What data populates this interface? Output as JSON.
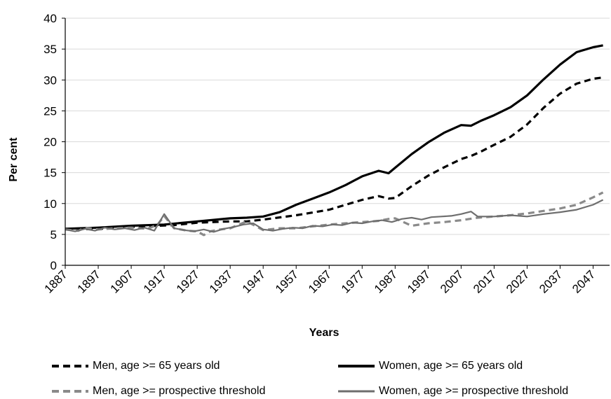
{
  "chart_data": {
    "type": "line",
    "title": "",
    "xlabel": "Years",
    "ylabel": "Per cent",
    "xlim": [
      1887,
      2052
    ],
    "ylim": [
      0,
      40
    ],
    "yticks": [
      "0",
      "5",
      "10",
      "15",
      "20",
      "25",
      "30",
      "35",
      "40"
    ],
    "xticks": [
      "1887",
      "1897",
      "1907",
      "1917",
      "1927",
      "1937",
      "1947",
      "1957",
      "1967",
      "1977",
      "1987",
      "1997",
      "2007",
      "2017",
      "2027",
      "2037",
      "2047"
    ],
    "grid": true,
    "legend_position": "bottom",
    "series": [
      {
        "name": "Men, age >= 65 years old",
        "color": "#000000",
        "dash": true,
        "x": [
          1887,
          1897,
          1907,
          1915,
          1920,
          1927,
          1937,
          1942,
          1947,
          1957,
          1967,
          1972,
          1977,
          1982,
          1985,
          1987,
          1992,
          1997,
          2002,
          2007,
          2010,
          2013,
          2017,
          2022,
          2027,
          2032,
          2037,
          2042,
          2047,
          2050
        ],
        "y": [
          5.8,
          5.9,
          6.2,
          6.4,
          6.5,
          6.9,
          7.1,
          7.1,
          7.4,
          8.1,
          9.0,
          9.8,
          10.6,
          11.2,
          10.8,
          10.9,
          12.8,
          14.5,
          15.9,
          17.2,
          17.7,
          18.4,
          19.5,
          20.8,
          22.8,
          25.5,
          27.8,
          29.4,
          30.2,
          30.4
        ]
      },
      {
        "name": "Women, age >= 65 years old",
        "color": "#000000",
        "dash": false,
        "x": [
          1887,
          1897,
          1907,
          1917,
          1927,
          1937,
          1942,
          1947,
          1952,
          1957,
          1962,
          1967,
          1972,
          1977,
          1982,
          1985,
          1987,
          1992,
          1997,
          2002,
          2007,
          2010,
          2013,
          2017,
          2022,
          2027,
          2032,
          2037,
          2042,
          2047,
          2050
        ],
        "y": [
          5.9,
          6.1,
          6.4,
          6.6,
          7.1,
          7.6,
          7.7,
          7.9,
          8.6,
          9.8,
          10.8,
          11.8,
          13.0,
          14.4,
          15.3,
          14.9,
          15.8,
          18.0,
          19.9,
          21.5,
          22.7,
          22.6,
          23.4,
          24.3,
          25.6,
          27.5,
          30.1,
          32.5,
          34.5,
          35.3,
          35.6
        ]
      },
      {
        "name": "Men, age >= prospective threshold",
        "color": "#8a8a8a",
        "dash": true,
        "x": [
          1887,
          1891,
          1893,
          1897,
          1902,
          1907,
          1912,
          1915,
          1917,
          1920,
          1924,
          1927,
          1929,
          1931,
          1934,
          1937,
          1942,
          1947,
          1952,
          1957,
          1962,
          1967,
          1972,
          1977,
          1980,
          1982,
          1985,
          1987,
          1992,
          1997,
          2002,
          2007,
          2012,
          2017,
          2022,
          2027,
          2032,
          2037,
          2042,
          2047,
          2050
        ],
        "y": [
          5.8,
          5.6,
          6.1,
          5.8,
          6.0,
          6.1,
          5.9,
          6.6,
          8.0,
          6.0,
          5.6,
          5.5,
          4.9,
          5.5,
          5.8,
          6.0,
          7.1,
          5.7,
          6.0,
          6.0,
          6.3,
          6.6,
          6.8,
          7.0,
          7.1,
          7.2,
          7.5,
          7.6,
          6.4,
          6.8,
          7.0,
          7.3,
          7.7,
          7.9,
          8.1,
          8.4,
          8.8,
          9.2,
          9.8,
          11.0,
          11.8
        ]
      },
      {
        "name": "Women, age >= prospective threshold",
        "color": "#6e6e6e",
        "dash": false,
        "x": [
          1887,
          1890,
          1893,
          1896,
          1899,
          1902,
          1905,
          1908,
          1911,
          1914,
          1917,
          1920,
          1923,
          1926,
          1929,
          1932,
          1935,
          1938,
          1941,
          1944,
          1947,
          1950,
          1953,
          1956,
          1959,
          1962,
          1965,
          1968,
          1971,
          1974,
          1977,
          1980,
          1983,
          1986,
          1989,
          1992,
          1995,
          1998,
          2001,
          2004,
          2007,
          2010,
          2012,
          2017,
          2022,
          2027,
          2032,
          2037,
          2042,
          2047,
          2050
        ],
        "y": [
          5.8,
          5.5,
          5.9,
          5.6,
          6.1,
          5.8,
          6.0,
          5.7,
          6.1,
          5.6,
          8.3,
          6.0,
          5.7,
          5.5,
          5.8,
          5.4,
          5.9,
          6.2,
          6.6,
          6.8,
          5.8,
          5.6,
          5.9,
          6.1,
          6.0,
          6.4,
          6.3,
          6.6,
          6.5,
          6.9,
          6.8,
          7.1,
          7.3,
          7.0,
          7.5,
          7.7,
          7.4,
          7.8,
          7.9,
          8.0,
          8.3,
          8.7,
          7.9,
          7.9,
          8.1,
          7.9,
          8.3,
          8.6,
          9.0,
          9.8,
          10.6
        ]
      }
    ]
  }
}
